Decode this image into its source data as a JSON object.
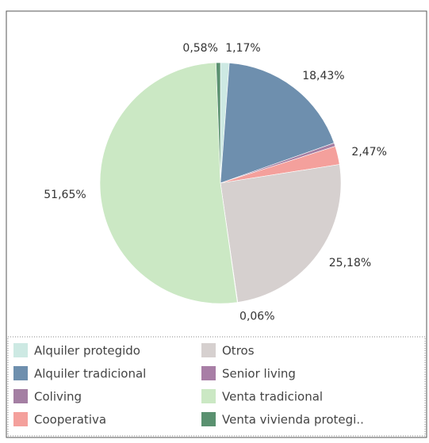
{
  "chart_data": {
    "type": "pie",
    "categories": [
      "Alquiler protegido",
      "Alquiler tradicional",
      "Coliving",
      "Cooperativa",
      "Otros",
      "Senior living",
      "Venta tradicional",
      "Venta vivienda protegi.."
    ],
    "values": [
      1.17,
      18.43,
      0.46,
      2.47,
      25.18,
      0.06,
      51.65,
      0.58
    ],
    "value_labels": [
      "1,17%",
      "18,43%",
      null,
      "2,47%",
      "25,18%",
      "0,06%",
      "51,65%",
      "0,58%"
    ],
    "colors": [
      "#cde9e3",
      "#6e8fae",
      "#a47fa3",
      "#f4a09c",
      "#d6d0cf",
      "#a87ea6",
      "#cbe8c4",
      "#5a9170"
    ],
    "legend": "bottom"
  }
}
